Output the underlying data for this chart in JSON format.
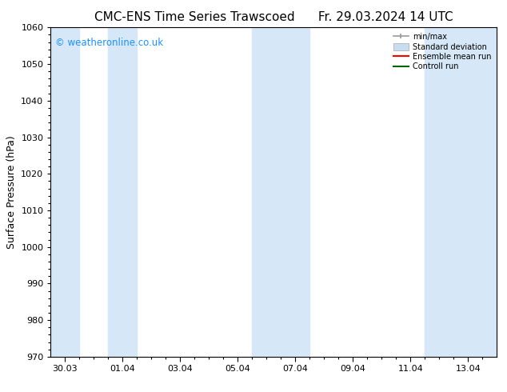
{
  "title": "CMC-ENS Time Series Trawscoed",
  "title2": "Fr. 29.03.2024 14 UTC",
  "ylabel": "Surface Pressure (hPa)",
  "background_color": "#ffffff",
  "plot_bg_color": "#ffffff",
  "ylim": [
    970,
    1060
  ],
  "yticks": [
    970,
    980,
    990,
    1000,
    1010,
    1020,
    1030,
    1040,
    1050,
    1060
  ],
  "xtick_labels": [
    "30.03",
    "01.04",
    "03.04",
    "05.04",
    "07.04",
    "09.04",
    "11.04",
    "13.04"
  ],
  "xtick_positions": [
    0,
    2,
    4,
    6,
    8,
    10,
    12,
    14
  ],
  "xlim": [
    -0.5,
    15.0
  ],
  "shaded_bands": [
    {
      "x_start": -0.5,
      "x_end": 0.5,
      "color": "#d6e8f7"
    },
    {
      "x_start": 1.5,
      "x_end": 2.5,
      "color": "#d6e8f7"
    },
    {
      "x_start": 6.5,
      "x_end": 8.5,
      "color": "#d6e8f7"
    },
    {
      "x_start": 12.5,
      "x_end": 15.0,
      "color": "#d6e8f7"
    }
  ],
  "legend_items": [
    {
      "label": "min/max",
      "color": "#999999",
      "style": "errorbar"
    },
    {
      "label": "Standard deviation",
      "color": "#c8ddf0",
      "style": "box"
    },
    {
      "label": "Ensemble mean run",
      "color": "#ff0000",
      "style": "line"
    },
    {
      "label": "Controll run",
      "color": "#008000",
      "style": "line"
    }
  ],
  "watermark": "© weatheronline.co.uk",
  "watermark_color": "#1e90ff",
  "title_fontsize": 11,
  "tick_fontsize": 8,
  "ylabel_fontsize": 9
}
